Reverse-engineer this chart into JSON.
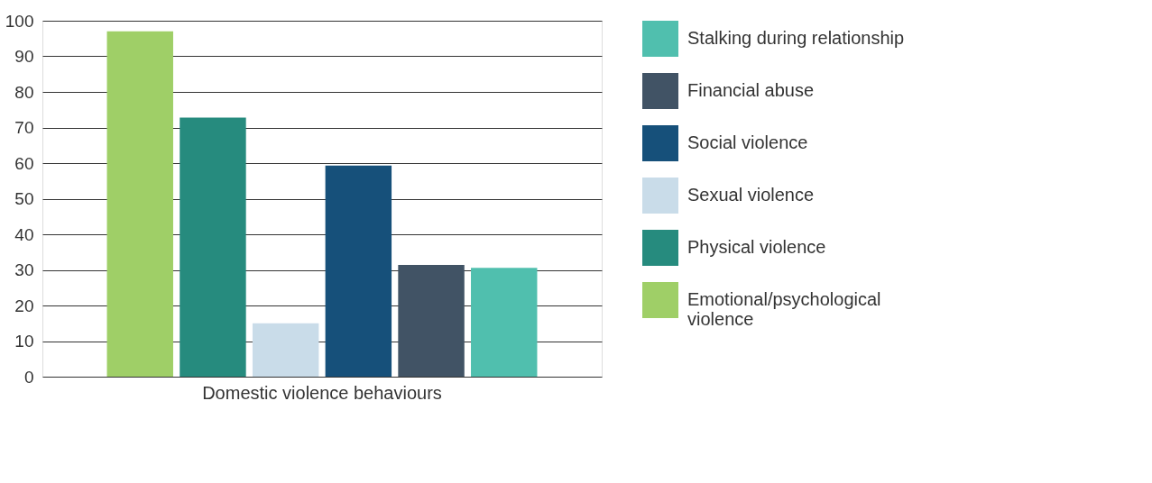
{
  "chart_data": {
    "type": "bar",
    "categories": [
      "Domestic violence behaviours"
    ],
    "series": [
      {
        "name": "Emotional/psychological violence",
        "color": "#9fcf67",
        "values": [
          97
        ]
      },
      {
        "name": "Physical violence",
        "color": "#268b7e",
        "values": [
          72.8
        ]
      },
      {
        "name": "Sexual violence",
        "color": "#c9dce9",
        "values": [
          15
        ]
      },
      {
        "name": "Social violence",
        "color": "#16507a",
        "values": [
          59.3
        ]
      },
      {
        "name": "Financial abuse",
        "color": "#415365",
        "values": [
          31.4
        ]
      },
      {
        "name": "Stalking during relationship",
        "color": "#50bfae",
        "values": [
          30.6
        ]
      }
    ],
    "ylim": [
      0,
      100
    ],
    "yticks": [
      0,
      10,
      20,
      30,
      40,
      50,
      60,
      70,
      80,
      90,
      100
    ],
    "grid": "y",
    "legend": "right"
  }
}
